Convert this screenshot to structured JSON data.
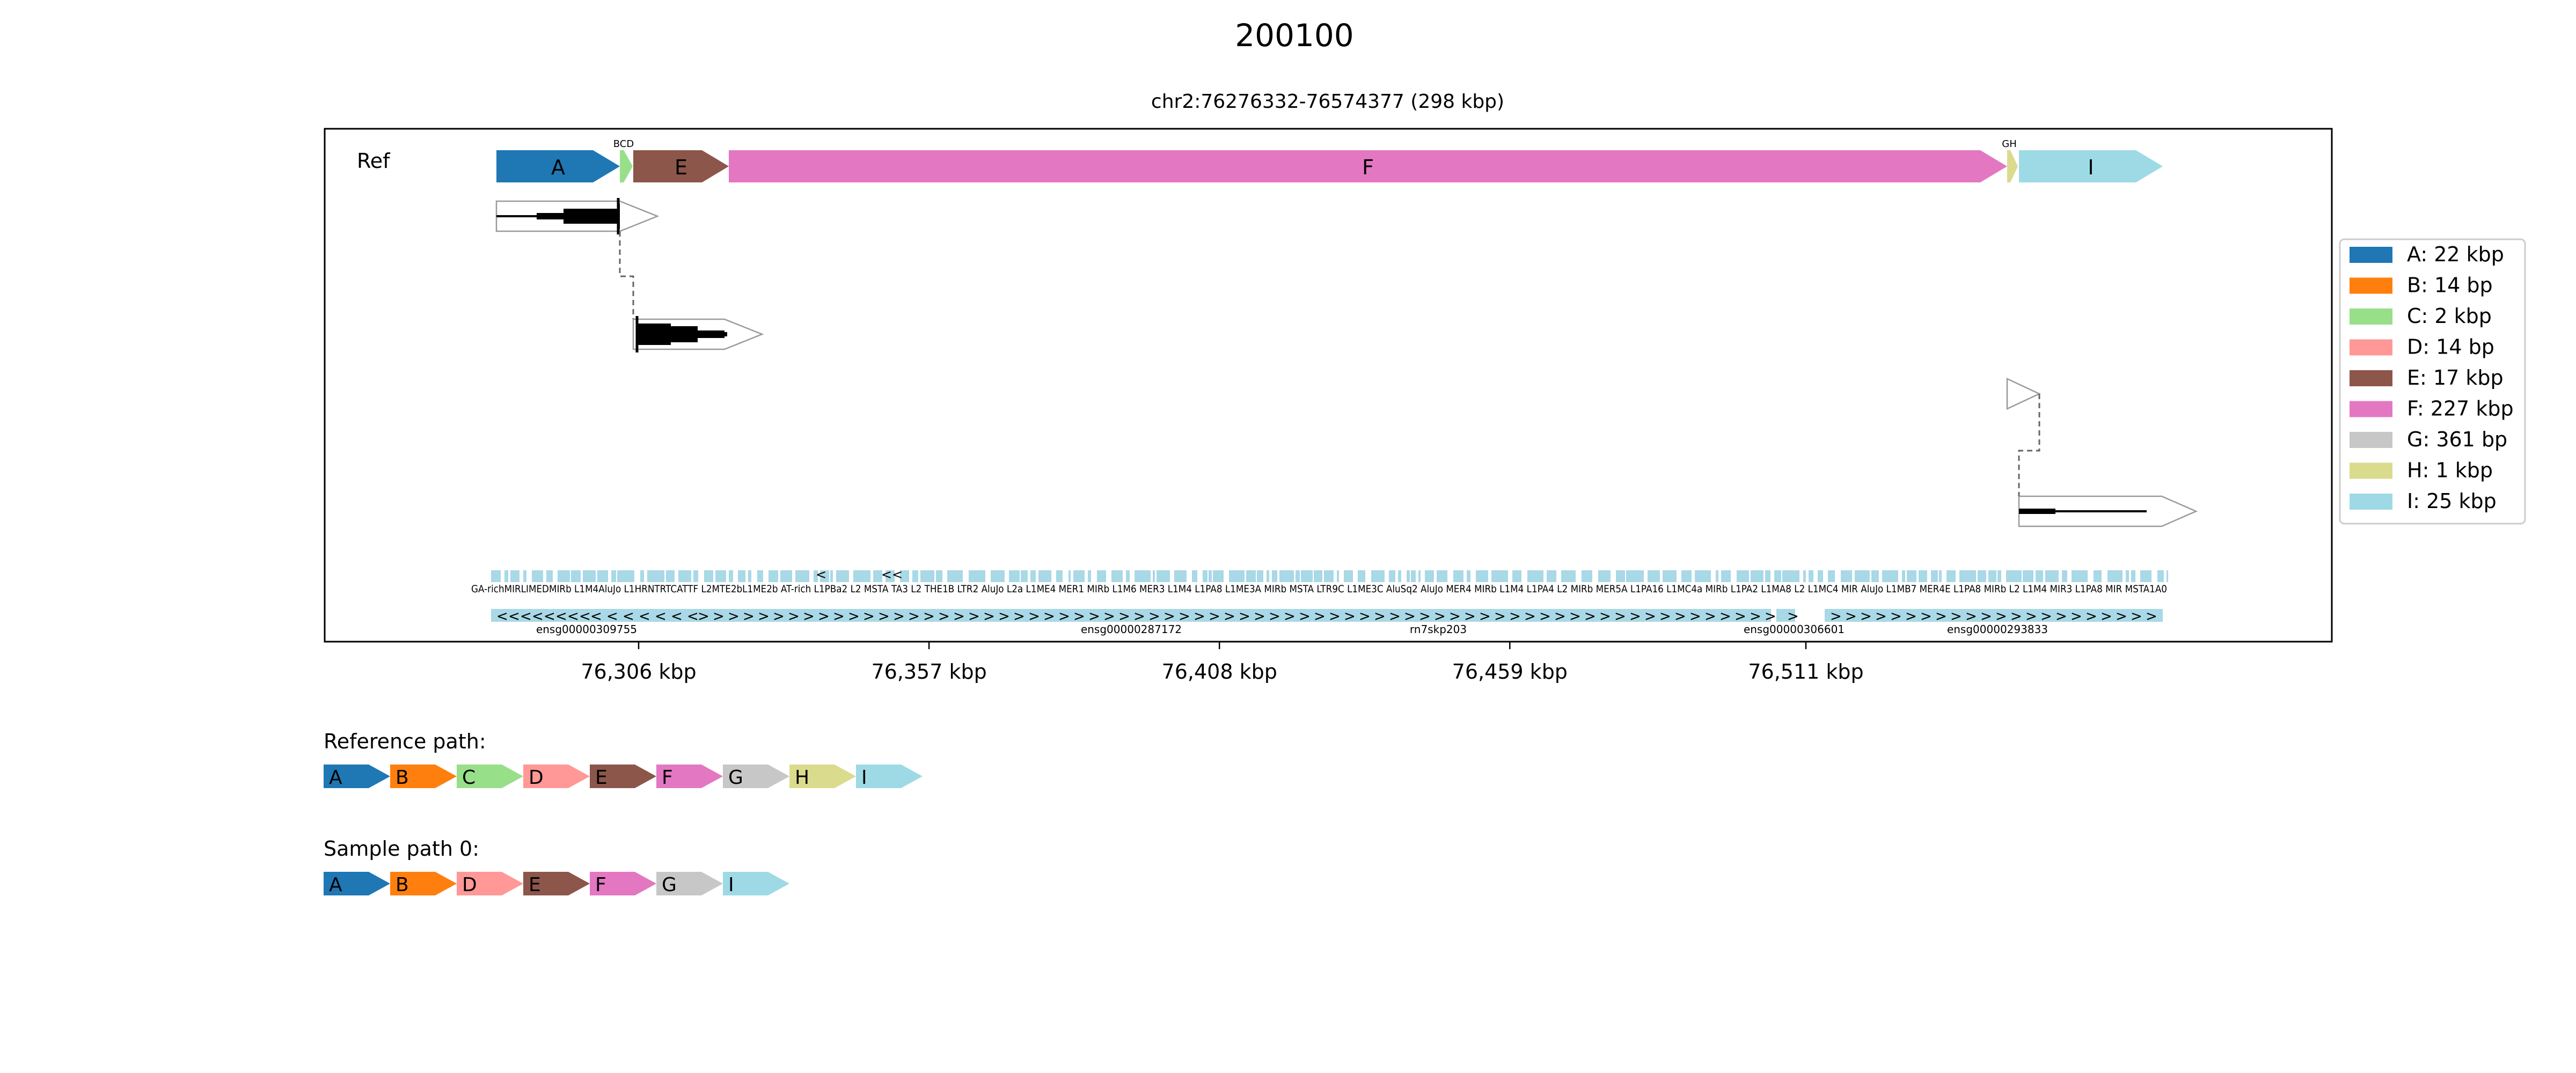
{
  "title": "200100",
  "subtitle": "chr2:76276332-76574377 (298 kbp)",
  "track_label": "Ref",
  "x_axis": {
    "range_bp": [
      76276332,
      76574377
    ],
    "ticks": [
      {
        "pos": 76306000,
        "label": "76,306 kbp"
      },
      {
        "pos": 76357000,
        "label": "76,357 kbp"
      },
      {
        "pos": 76408000,
        "label": "76,408 kbp"
      },
      {
        "pos": 76459000,
        "label": "76,459 kbp"
      },
      {
        "pos": 76511000,
        "label": "76,511 kbp"
      }
    ]
  },
  "segments": [
    {
      "id": "A",
      "color": "#1f77b4",
      "size": "22 kbp",
      "bp": 22000
    },
    {
      "id": "B",
      "color": "#ff7f0e",
      "size": "14 bp",
      "bp": 14
    },
    {
      "id": "C",
      "color": "#98df8a",
      "size": "2 kbp",
      "bp": 2000
    },
    {
      "id": "D",
      "color": "#ff9896",
      "size": "14 bp",
      "bp": 14
    },
    {
      "id": "E",
      "color": "#8c564b",
      "size": "17 kbp",
      "bp": 17000
    },
    {
      "id": "F",
      "color": "#e377c2",
      "size": "227 kbp",
      "bp": 227000
    },
    {
      "id": "G",
      "color": "#c7c7c7",
      "size": "361 bp",
      "bp": 361
    },
    {
      "id": "H",
      "color": "#dbdb8d",
      "size": "1 kbp",
      "bp": 1000
    },
    {
      "id": "I",
      "color": "#9edae5",
      "size": "25 kbp",
      "bp": 25000
    }
  ],
  "ref_track": {
    "small_label_bcd": "BCD",
    "small_label_gh": "GH"
  },
  "legend": [
    {
      "id": "A",
      "text": "A: 22 kbp"
    },
    {
      "id": "B",
      "text": "B: 14 bp"
    },
    {
      "id": "C",
      "text": "C: 2 kbp"
    },
    {
      "id": "D",
      "text": "D: 14 bp"
    },
    {
      "id": "E",
      "text": "E: 17 kbp"
    },
    {
      "id": "F",
      "text": "F: 227 kbp"
    },
    {
      "id": "G",
      "text": "G: 361 bp"
    },
    {
      "id": "H",
      "text": "H: 1 kbp"
    },
    {
      "id": "I",
      "text": "I: 25 kbp"
    }
  ],
  "repeat_labels_text": "GA-richMIRLIMEDMIRb L1M4AluJo L1HRNTRTCATTF L2MTE2bL1ME2b AT-rich L1PBa2 L2 MSTA TA3 L2 THE1B LTR2 AluJo L2a L1ME4 MER1 MIRb L1M6 MER3 L1M4 L1PA8 L1ME3A MIRb MSTA LTR9C L1ME3C AluSq2 AluJo MER4 MIRb L1M4 L1PA4 L2 MIRb MER5A L1PA16 L1MC4a MIRb L1PA2 L1MA8 L2 L1MC4 MIR AluJo L1MB7 MER4E L1PA8 MIRb L2 L1M4 MIR3 L1PA8 MIR MSTA1A0",
  "gene_track": {
    "genes": [
      {
        "name": "ensg00000309755"
      },
      {
        "name": "ensg00000287172"
      },
      {
        "name": "rn7skp203"
      },
      {
        "name": "ensg00000306601"
      },
      {
        "name": "ensg00000293833"
      }
    ],
    "strand_glyph_rev": "<",
    "strand_glyph_fwd": ">"
  },
  "paths": [
    {
      "label": "Reference path:",
      "segments": [
        "A",
        "B",
        "C",
        "D",
        "E",
        "F",
        "G",
        "H",
        "I"
      ]
    },
    {
      "label": "Sample path 0:",
      "segments": [
        "A",
        "B",
        "D",
        "E",
        "F",
        "G",
        "I"
      ]
    }
  ]
}
